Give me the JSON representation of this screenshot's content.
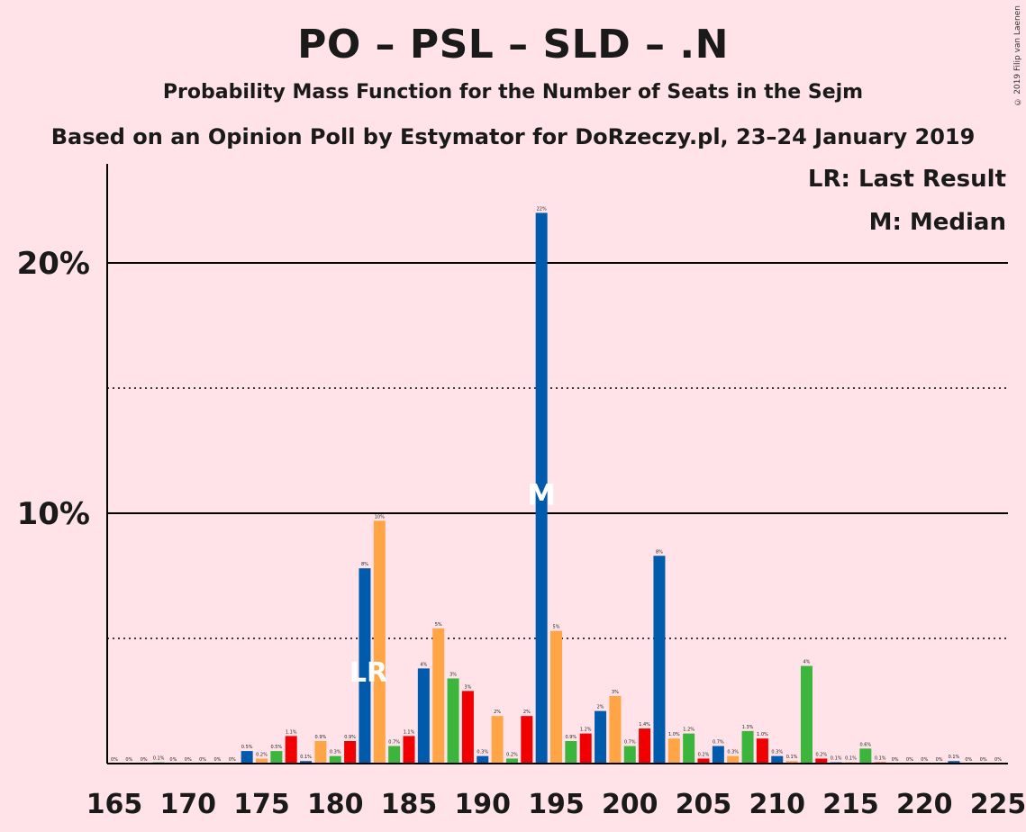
{
  "title": "PO – PSL – SLD – .N",
  "subtitle": "Probability Mass Function for the Number of Seats in the Sejm",
  "subtitle2": "Based on an Opinion Poll by Estymator for DoRzeczy.pl, 23–24 January 2019",
  "copyright": "© 2019 Filip van Laenen",
  "legend": {
    "last_result": "LR: Last Result",
    "median": "M: Median"
  },
  "chart_data": {
    "type": "bar",
    "xlim": [
      165,
      225
    ],
    "ylim": [
      0,
      24
    ],
    "x_ticks": [
      165,
      170,
      175,
      180,
      185,
      190,
      195,
      200,
      205,
      210,
      215,
      220,
      225
    ],
    "y_ticks": [
      {
        "value": 10,
        "label": "10%"
      },
      {
        "value": 20,
        "label": "20%"
      }
    ],
    "y_gridlines_solid": [
      10,
      20
    ],
    "y_gridlines_dotted": [
      5,
      15
    ],
    "last_result_seat": 182,
    "last_result_marker": "LR",
    "median_seat": 194,
    "median_marker": "M",
    "colors": [
      "#F00000",
      "#005BAC",
      "#FFA545",
      "#3BB53B"
    ],
    "bars": [
      {
        "seat": 165,
        "value": 0,
        "label": "0%"
      },
      {
        "seat": 166,
        "value": 0,
        "label": "0%"
      },
      {
        "seat": 167,
        "value": 0,
        "label": "0%"
      },
      {
        "seat": 168,
        "value": 0.05,
        "label": "0.1%"
      },
      {
        "seat": 169,
        "value": 0,
        "label": "0%"
      },
      {
        "seat": 170,
        "value": 0,
        "label": "0%"
      },
      {
        "seat": 171,
        "value": 0,
        "label": "0%"
      },
      {
        "seat": 172,
        "value": 0,
        "label": "0%"
      },
      {
        "seat": 173,
        "value": 0,
        "label": "0%"
      },
      {
        "seat": 174,
        "value": 0.5,
        "label": "0.5%"
      },
      {
        "seat": 175,
        "value": 0.2,
        "label": "0.2%"
      },
      {
        "seat": 176,
        "value": 0.5,
        "label": "0.5%"
      },
      {
        "seat": 177,
        "value": 1.1,
        "label": "1.1%"
      },
      {
        "seat": 178,
        "value": 0.1,
        "label": "0.1%"
      },
      {
        "seat": 179,
        "value": 0.9,
        "label": "0.9%"
      },
      {
        "seat": 180,
        "value": 0.3,
        "label": "0.3%"
      },
      {
        "seat": 181,
        "value": 0.9,
        "label": "0.9%"
      },
      {
        "seat": 182,
        "value": 7.8,
        "label": "8%"
      },
      {
        "seat": 183,
        "value": 9.7,
        "label": "10%"
      },
      {
        "seat": 184,
        "value": 0.7,
        "label": "0.7%"
      },
      {
        "seat": 185,
        "value": 1.1,
        "label": "1.1%"
      },
      {
        "seat": 186,
        "value": 3.8,
        "label": "4%"
      },
      {
        "seat": 187,
        "value": 5.4,
        "label": "5%"
      },
      {
        "seat": 188,
        "value": 3.4,
        "label": "3%"
      },
      {
        "seat": 189,
        "value": 2.9,
        "label": "3%"
      },
      {
        "seat": 190,
        "value": 0.3,
        "label": "0.3%"
      },
      {
        "seat": 191,
        "value": 1.9,
        "label": "2%"
      },
      {
        "seat": 192,
        "value": 0.2,
        "label": "0.2%"
      },
      {
        "seat": 193,
        "value": 1.9,
        "label": "2%"
      },
      {
        "seat": 194,
        "value": 22.0,
        "label": "22%"
      },
      {
        "seat": 195,
        "value": 5.3,
        "label": "5%"
      },
      {
        "seat": 196,
        "value": 0.9,
        "label": "0.9%"
      },
      {
        "seat": 197,
        "value": 1.2,
        "label": "1.2%"
      },
      {
        "seat": 198,
        "value": 2.1,
        "label": "2%"
      },
      {
        "seat": 199,
        "value": 2.7,
        "label": "3%"
      },
      {
        "seat": 200,
        "value": 0.7,
        "label": "0.7%"
      },
      {
        "seat": 201,
        "value": 1.4,
        "label": "1.4%"
      },
      {
        "seat": 202,
        "value": 8.3,
        "label": "8%"
      },
      {
        "seat": 203,
        "value": 1.0,
        "label": "1.0%"
      },
      {
        "seat": 204,
        "value": 1.2,
        "label": "1.2%"
      },
      {
        "seat": 205,
        "value": 0.2,
        "label": "0.2%"
      },
      {
        "seat": 206,
        "value": 0.7,
        "label": "0.7%"
      },
      {
        "seat": 207,
        "value": 0.3,
        "label": "0.3%"
      },
      {
        "seat": 208,
        "value": 1.3,
        "label": "1.3%"
      },
      {
        "seat": 209,
        "value": 1.0,
        "label": "1.0%"
      },
      {
        "seat": 210,
        "value": 0.3,
        "label": "0.3%"
      },
      {
        "seat": 211,
        "value": 0.1,
        "label": "0.1%"
      },
      {
        "seat": 212,
        "value": 3.9,
        "label": "4%"
      },
      {
        "seat": 213,
        "value": 0.2,
        "label": "0.2%"
      },
      {
        "seat": 214,
        "value": 0.05,
        "label": "0.1%"
      },
      {
        "seat": 215,
        "value": 0.05,
        "label": "0.1%"
      },
      {
        "seat": 216,
        "value": 0.6,
        "label": "0.6%"
      },
      {
        "seat": 217,
        "value": 0.05,
        "label": "0.1%"
      },
      {
        "seat": 218,
        "value": 0,
        "label": "0%"
      },
      {
        "seat": 219,
        "value": 0,
        "label": "0%"
      },
      {
        "seat": 220,
        "value": 0,
        "label": "0%"
      },
      {
        "seat": 221,
        "value": 0,
        "label": "0%"
      },
      {
        "seat": 222,
        "value": 0.1,
        "label": "0.1%"
      },
      {
        "seat": 223,
        "value": 0,
        "label": "0%"
      },
      {
        "seat": 224,
        "value": 0,
        "label": "0%"
      },
      {
        "seat": 225,
        "value": 0,
        "label": "0%"
      }
    ]
  }
}
